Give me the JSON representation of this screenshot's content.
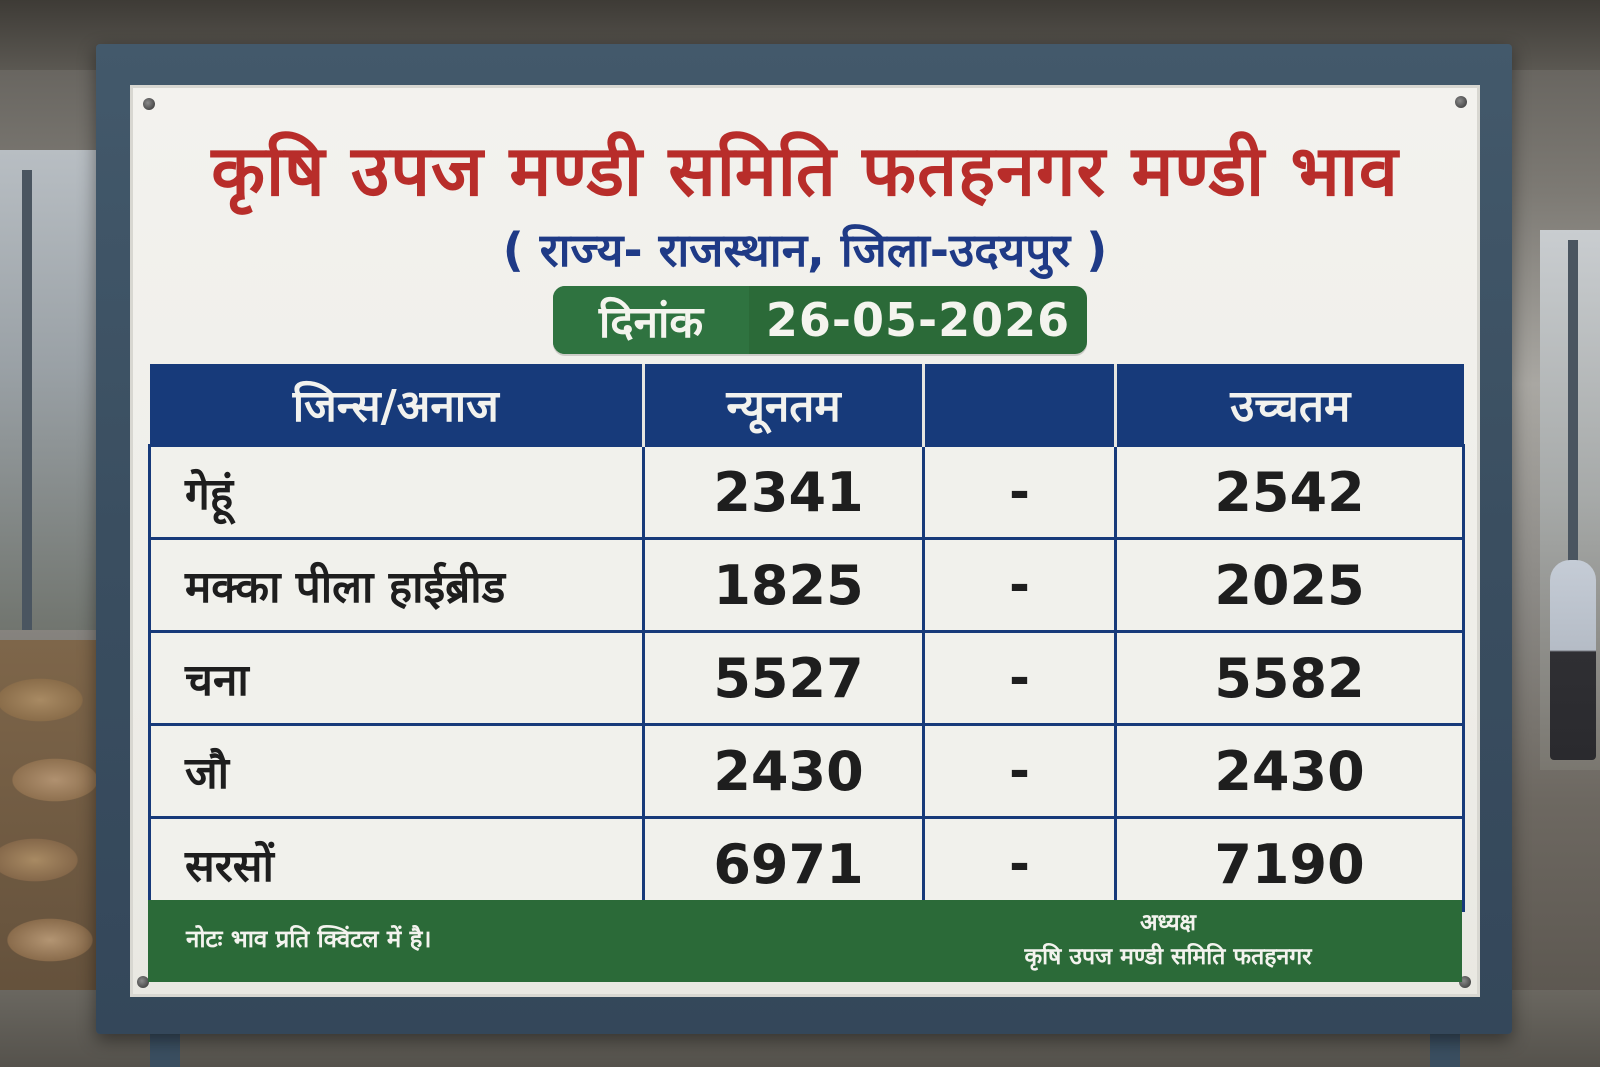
{
  "board": {
    "title": "कृषि उपज मण्डी समिति फतहनगर मण्डी भाव",
    "subtitle": "( राज्य- राजस्थान, जिला-उदयपुर )",
    "date_label": "दिनांक",
    "date_value": "26-05-2026",
    "table": {
      "headers": [
        "जिन्स/अनाज",
        "न्यूनतम",
        "",
        "उच्चतम"
      ],
      "rows": [
        {
          "crop": "गेहूं",
          "min": "2341",
          "sep": "-",
          "max": "2542"
        },
        {
          "crop": "मक्का पीला हाईब्रीड",
          "min": "1825",
          "sep": "-",
          "max": "2025"
        },
        {
          "crop": "चना",
          "min": "5527",
          "sep": "-",
          "max": "5582"
        },
        {
          "crop": "जौ",
          "min": "2430",
          "sep": "-",
          "max": "2430"
        },
        {
          "crop": "सरसों",
          "min": "6971",
          "sep": "-",
          "max": "7190"
        }
      ]
    },
    "footer": {
      "note": "नोटः भाव प्रति क्विंटल में है।",
      "signatory_title": "अध्यक्ष",
      "signatory_org": "कृषि उपज मण्डी समिति फतहनगर"
    }
  },
  "colors": {
    "title_red": "#b82d2a",
    "subtitle_blue": "#1f3a86",
    "header_navy": "#173a7a",
    "footer_green": "#2b6a38",
    "board_white": "#f1f1ec"
  }
}
